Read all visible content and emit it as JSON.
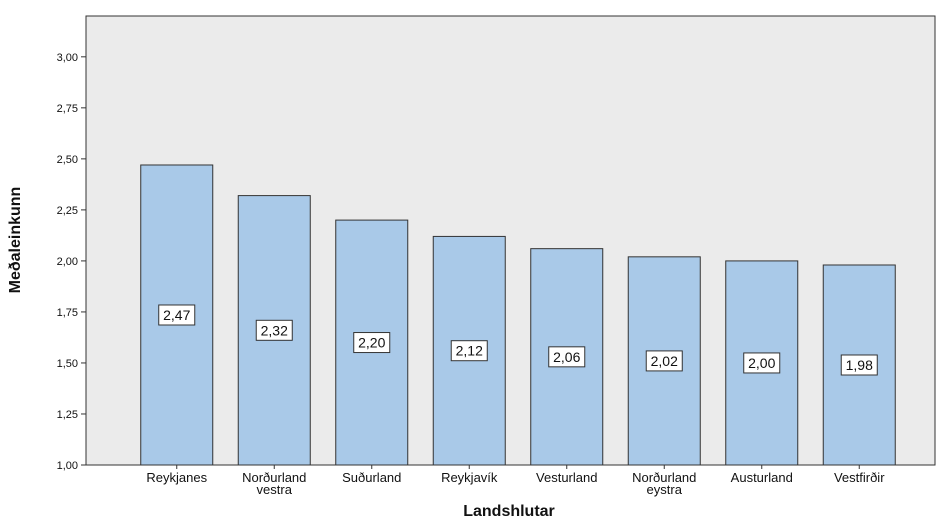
{
  "chart_data": {
    "type": "bar",
    "title": "",
    "xlabel": "Landshlutar",
    "ylabel": "Meðaleinkunn",
    "ylim": [
      1.0,
      3.2
    ],
    "yticks": [
      "1,00",
      "1,25",
      "1,50",
      "1,75",
      "2,00",
      "2,25",
      "2,50",
      "2,75",
      "3,00"
    ],
    "ytick_values": [
      1.0,
      1.25,
      1.5,
      1.75,
      2.0,
      2.25,
      2.5,
      2.75,
      3.0
    ],
    "categories": [
      [
        "Reykjanes"
      ],
      [
        "Norðurland",
        "vestra"
      ],
      [
        "Suðurland"
      ],
      [
        "Reykjavík"
      ],
      [
        "Vesturland"
      ],
      [
        "Norðurland",
        "eystra"
      ],
      [
        "Austurland"
      ],
      [
        "Vestfirðir"
      ]
    ],
    "values": [
      2.47,
      2.32,
      2.2,
      2.12,
      2.06,
      2.02,
      2.0,
      1.98
    ],
    "value_labels": [
      "2,47",
      "2,32",
      "2,20",
      "2,12",
      "2,06",
      "2,02",
      "2,00",
      "1,98"
    ],
    "bar_color": "#a9c9e8",
    "plot_background": "#ebebeb",
    "grid": false,
    "legend": "none"
  }
}
